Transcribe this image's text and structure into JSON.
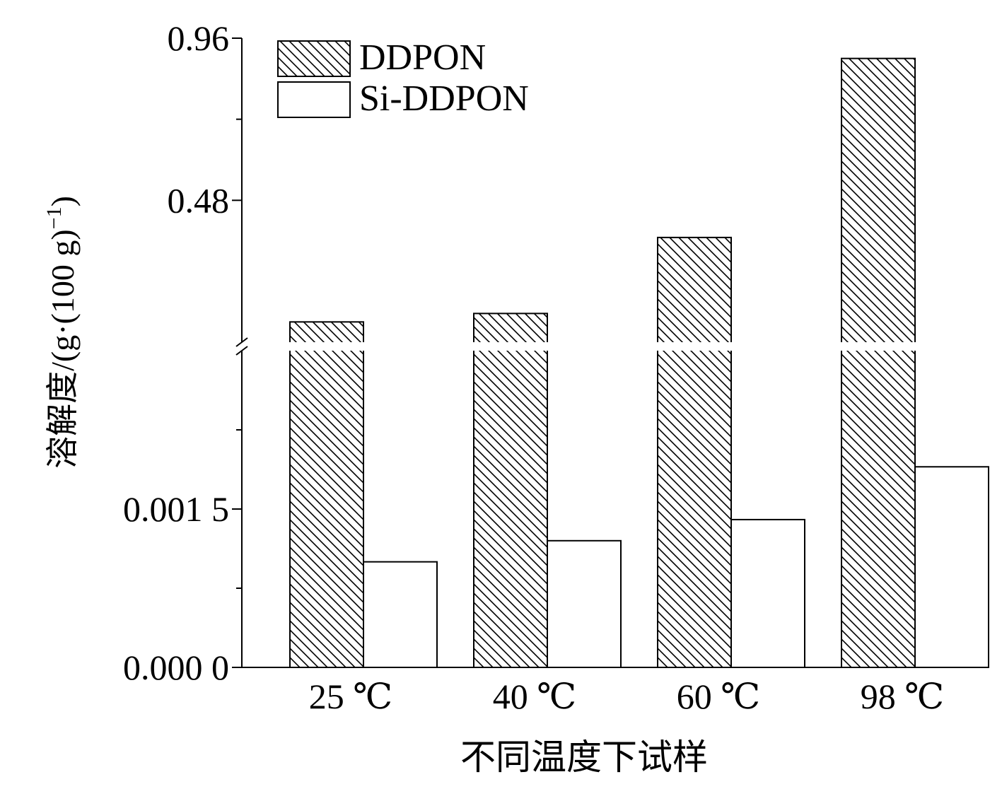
{
  "chart_data": {
    "type": "bar",
    "broken_axis": true,
    "categories": [
      "25 ℃",
      "40 ℃",
      "60 ℃",
      "98 ℃"
    ],
    "series": [
      {
        "name": "DDPON",
        "pattern": "diagonal-hatch",
        "values": [
          0.12,
          0.145,
          0.37,
          0.9
        ]
      },
      {
        "name": "Si-DDPON",
        "pattern": "none",
        "values": [
          0.001,
          0.0012,
          0.0014,
          0.0019
        ]
      }
    ],
    "xlabel": "不同温度下试样",
    "ylabel": "溶解度/(g·(100 g)",
    "ylabel_sup": "−1",
    "ylabel_close": ")",
    "y_lower": {
      "range": [
        0,
        0.003
      ],
      "ticks": [
        0.0,
        0.0015
      ],
      "tick_labels": [
        "0.000 0",
        "0.001 5"
      ]
    },
    "y_upper": {
      "range": [
        0.06,
        0.96
      ],
      "ticks": [
        0.48,
        0.96
      ],
      "tick_labels": [
        "0.48",
        "0.96"
      ]
    },
    "legend_position": "top-left",
    "grid": false
  }
}
